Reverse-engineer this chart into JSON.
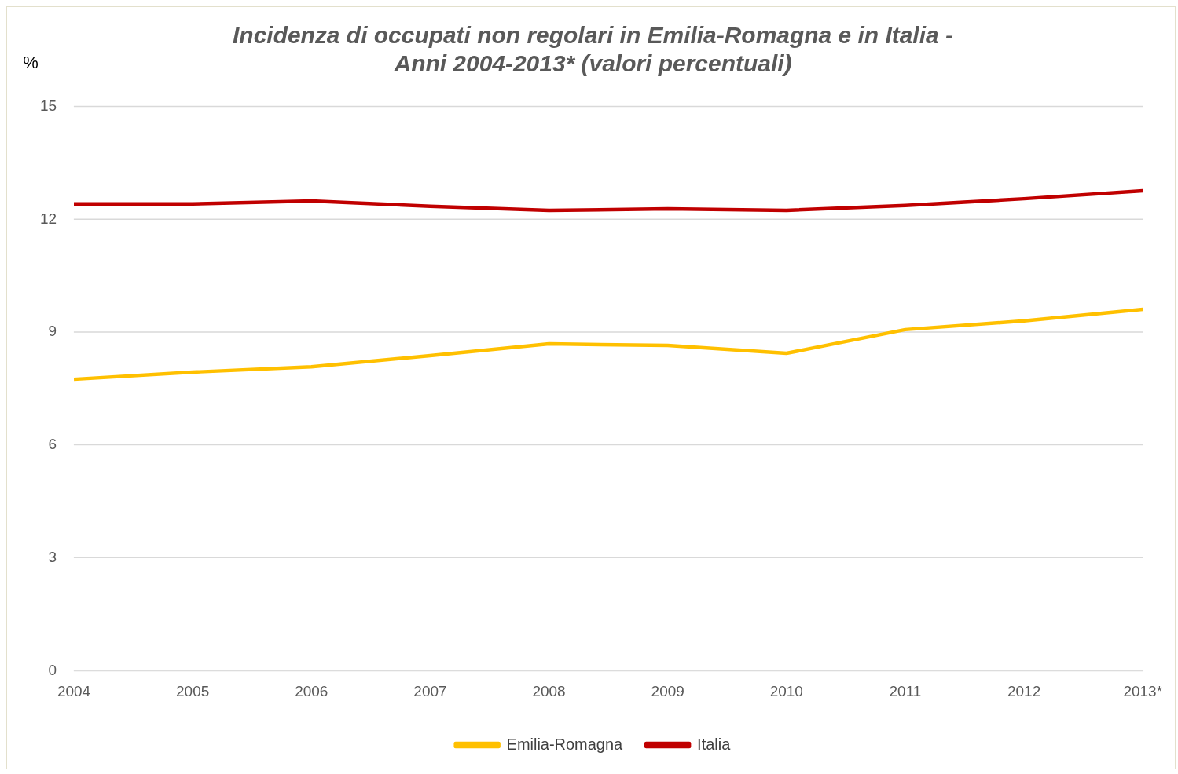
{
  "chart_data": {
    "type": "line",
    "title": [
      "Incidenza di occupati non regolari in Emilia-Romagna e in Italia -",
      "Anni 2004-2013* (valori percentuali)"
    ],
    "ylabel": "%",
    "categories": [
      "2004",
      "2005",
      "2006",
      "2007",
      "2008",
      "2009",
      "2010",
      "2011",
      "2012",
      "2013*"
    ],
    "series": [
      {
        "name": "Emilia-Romagna",
        "color": "#ffc000",
        "values": [
          7.75,
          7.94,
          8.08,
          8.38,
          8.69,
          8.65,
          8.44,
          9.07,
          9.3,
          9.61
        ]
      },
      {
        "name": "Italia",
        "color": "#c00000",
        "values": [
          12.41,
          12.41,
          12.49,
          12.35,
          12.24,
          12.28,
          12.24,
          12.37,
          12.55,
          12.76
        ]
      }
    ],
    "ylim": [
      0,
      15
    ],
    "yticks": [
      0,
      3,
      6,
      9,
      12,
      15
    ],
    "grid": "y",
    "legend": "bottom",
    "marker": "none",
    "line_style": "solid"
  }
}
